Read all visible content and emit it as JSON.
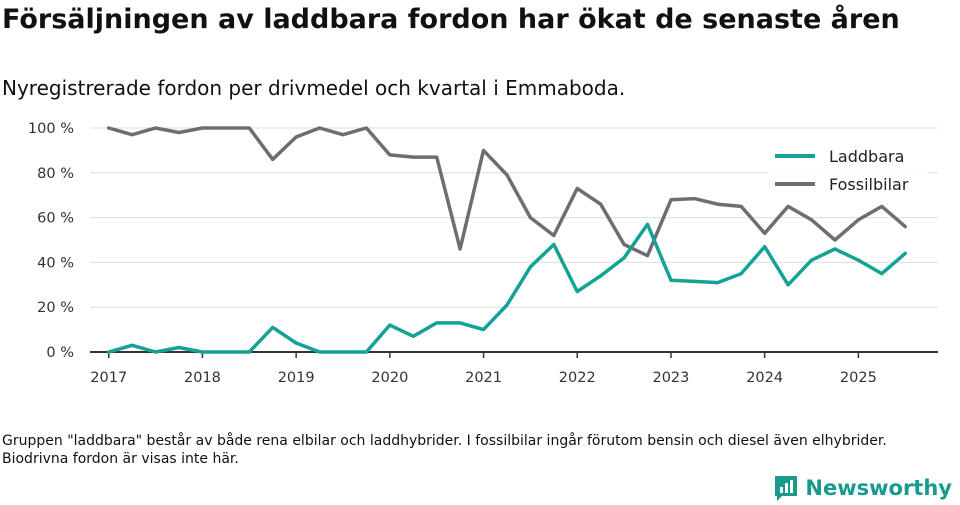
{
  "title": "Försäljningen av laddbara fordon har ökat de senaste åren",
  "subtitle": "Nyregistrerade fordon per drivmedel och kvartal i Emmaboda.",
  "footnote": "Gruppen \"laddbara\" består av både rena elbilar och laddhybrider. I fossilbilar ingår förutom bensin och diesel även elhybrider. Biodrivna fordon är visas inte här.",
  "brand": {
    "name": "Newsworthy",
    "icon": "newsworthy-logo-icon"
  },
  "colors": {
    "laddbara": "#13a294",
    "fossilbilar": "#6e6d73",
    "grid": "#dddddd",
    "axis": "#333333"
  },
  "chart_data": {
    "type": "line",
    "title": "Försäljningen av laddbara fordon har ökat de senaste åren",
    "xlabel": "",
    "ylabel": "",
    "ylim": [
      0,
      100
    ],
    "y_ticks": [
      0,
      20,
      40,
      60,
      80,
      100
    ],
    "y_tick_labels": [
      "0 %",
      "20 %",
      "40 %",
      "60 %",
      "80 %",
      "100 %"
    ],
    "x_ticks": [
      2017,
      2018,
      2019,
      2020,
      2021,
      2022,
      2023,
      2024,
      2025
    ],
    "x_tick_labels": [
      "2017",
      "2018",
      "2019",
      "2020",
      "2021",
      "2022",
      "2023",
      "2024",
      "2025"
    ],
    "x": [
      2017.0,
      2017.25,
      2017.5,
      2017.75,
      2018.0,
      2018.25,
      2018.5,
      2018.75,
      2019.0,
      2019.25,
      2019.5,
      2019.75,
      2020.0,
      2020.25,
      2020.5,
      2020.75,
      2021.0,
      2021.25,
      2021.5,
      2021.75,
      2022.0,
      2022.25,
      2022.5,
      2022.75,
      2023.0,
      2023.25,
      2023.5,
      2023.75,
      2024.0,
      2024.25,
      2024.5,
      2024.75,
      2025.0,
      2025.25,
      2025.5
    ],
    "legend_position": "top-right",
    "series": [
      {
        "name": "Laddbara",
        "color": "#13a294",
        "values": [
          0,
          3,
          0,
          2,
          0,
          0,
          0,
          11,
          4,
          0,
          0,
          0,
          12,
          7,
          13,
          13,
          10,
          21,
          38,
          48,
          27,
          34,
          42,
          57,
          32,
          31.5,
          31,
          35,
          47,
          30,
          41,
          46,
          41,
          35,
          44
        ]
      },
      {
        "name": "Fossilbilar",
        "color": "#6e6d73",
        "values": [
          100,
          97,
          100,
          98,
          100,
          100,
          100,
          86,
          96,
          100,
          97,
          100,
          88,
          87,
          87,
          46,
          90,
          79,
          60,
          52,
          73,
          66,
          48,
          43,
          68,
          68.5,
          66,
          65,
          53,
          65,
          59,
          50,
          59,
          65,
          56
        ]
      }
    ]
  }
}
